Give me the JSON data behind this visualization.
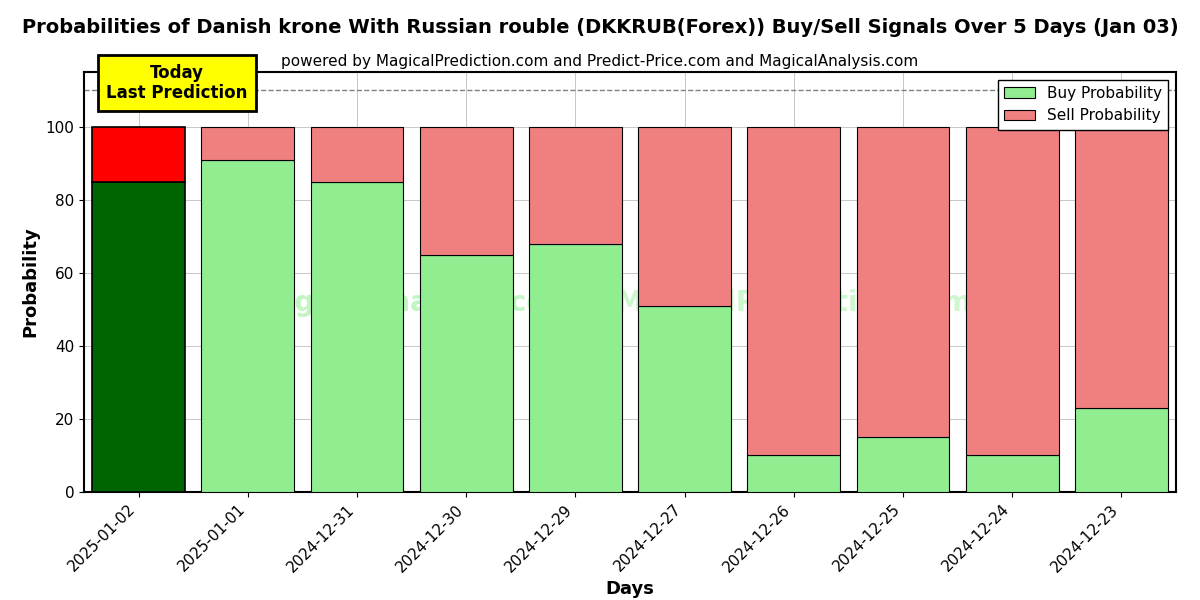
{
  "title": "Probabilities of Danish krone With Russian rouble (DKKRUB(Forex)) Buy/Sell Signals Over 5 Days (Jan 03)",
  "subtitle": "powered by MagicalPrediction.com and Predict-Price.com and MagicalAnalysis.com",
  "xlabel": "Days",
  "ylabel": "Probability",
  "categories": [
    "2025-01-02",
    "2025-01-01",
    "2024-12-31",
    "2024-12-30",
    "2024-12-29",
    "2024-12-27",
    "2024-12-26",
    "2024-12-25",
    "2024-12-24",
    "2024-12-23"
  ],
  "buy_values": [
    85,
    91,
    85,
    65,
    68,
    51,
    10,
    15,
    10,
    23
  ],
  "sell_values": [
    15,
    9,
    15,
    35,
    32,
    49,
    90,
    85,
    90,
    77
  ],
  "today_index": 0,
  "today_label": "Today\nLast Prediction",
  "color_dark_green": "#006400",
  "color_red": "#FF0000",
  "color_light_green": "#90EE90",
  "color_light_red": "#F08080",
  "color_today_box": "#FFFF00",
  "color_today_border": "#000000",
  "ylim": [
    0,
    115
  ],
  "yticks": [
    0,
    20,
    40,
    60,
    80,
    100
  ],
  "bar_width": 0.85,
  "title_fontsize": 14,
  "subtitle_fontsize": 11,
  "axis_label_fontsize": 13,
  "tick_fontsize": 11,
  "legend_fontsize": 11,
  "dashed_line_y": 110
}
